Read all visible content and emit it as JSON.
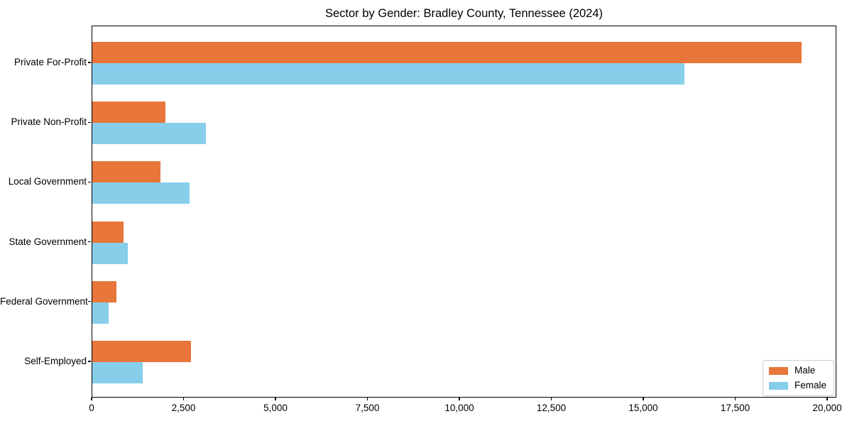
{
  "title": "Sector by Gender: Bradley County, Tennessee (2024)",
  "chart_data": {
    "type": "bar",
    "orientation": "horizontal",
    "title": "Sector by Gender: Bradley County, Tennessee (2024)",
    "categories": [
      "Private For-Profit",
      "Private Non-Profit",
      "Local Government",
      "State Government",
      "Federal Government",
      "Self-Employed"
    ],
    "series": [
      {
        "name": "Male",
        "color": "#e8763a",
        "values": [
          19290,
          1990,
          1850,
          850,
          650,
          2680
        ]
      },
      {
        "name": "Female",
        "color": "#87ceeb",
        "values": [
          16100,
          3090,
          2640,
          960,
          440,
          1370
        ]
      }
    ],
    "xlabel": "",
    "ylabel": "",
    "xlim": [
      0,
      20000
    ],
    "xticks": [
      0,
      2500,
      5000,
      7500,
      10000,
      12500,
      15000,
      17500,
      20000
    ],
    "xtick_labels": [
      "0",
      "2,500",
      "5,000",
      "7,500",
      "10,000",
      "12,500",
      "15,000",
      "17,500",
      "20,000"
    ],
    "grid": false,
    "legend": {
      "position": "lower right",
      "entries": [
        "Male",
        "Female"
      ]
    },
    "plot_border_color": "#000000",
    "background_color": "#ffffff"
  }
}
